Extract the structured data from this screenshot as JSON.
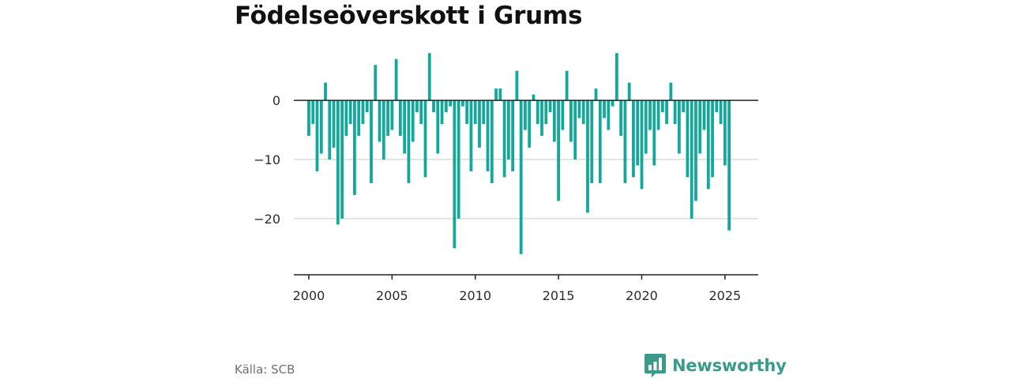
{
  "chart_data": {
    "type": "bar",
    "title": "Födelseöverskott i Grums",
    "xlabel": "",
    "ylabel": "",
    "ylim": [
      -29.5,
      9.5
    ],
    "xlim": [
      1999.1,
      2027.0
    ],
    "grid": "horizontal",
    "bar_color": "#14a89a",
    "y_ticks": [
      {
        "value": 0,
        "label": "0"
      },
      {
        "value": -10,
        "label": "−10"
      },
      {
        "value": -20,
        "label": "−20"
      }
    ],
    "x_ticks": [
      {
        "value": 2000,
        "label": "2000"
      },
      {
        "value": 2005,
        "label": "2005"
      },
      {
        "value": 2010,
        "label": "2010"
      },
      {
        "value": 2015,
        "label": "2015"
      },
      {
        "value": 2020,
        "label": "2020"
      },
      {
        "value": 2025,
        "label": "2025"
      }
    ],
    "start_year": 2000,
    "frequency": "quarterly",
    "values": [
      -6,
      -4,
      -12,
      -9,
      3,
      -10,
      -8,
      -21,
      -20,
      -6,
      -4,
      -16,
      -6,
      -4,
      -2,
      -14,
      6,
      -7,
      -10,
      -6,
      -5,
      7,
      -6,
      -9,
      -14,
      -7,
      -2,
      -4,
      -13,
      8,
      -2,
      -9,
      -4,
      -2,
      -1,
      -25,
      -20,
      -1,
      -4,
      -12,
      -4,
      -8,
      -4,
      -12,
      -14,
      2,
      2,
      -13,
      -10,
      -12,
      5,
      -26,
      -5,
      -8,
      1,
      -4,
      -6,
      -4,
      -2,
      -7,
      -17,
      -5,
      5,
      -7,
      -10,
      -3,
      -4,
      -19,
      -14,
      2,
      -14,
      -3,
      -5,
      -1,
      8,
      -6,
      -14,
      3,
      -13,
      -11,
      -15,
      -9,
      -5,
      -11,
      -5,
      -2,
      -4,
      3,
      -4,
      -9,
      -2,
      -13,
      -20,
      -17,
      -9,
      -5,
      -15,
      -13,
      -2,
      -4,
      -11,
      -22
    ]
  },
  "footer": {
    "source": "Källa: SCB",
    "brand": "Newsworthy",
    "brand_icon": "newsworthy-chart-icon",
    "brand_color": "#3a9b8a"
  }
}
